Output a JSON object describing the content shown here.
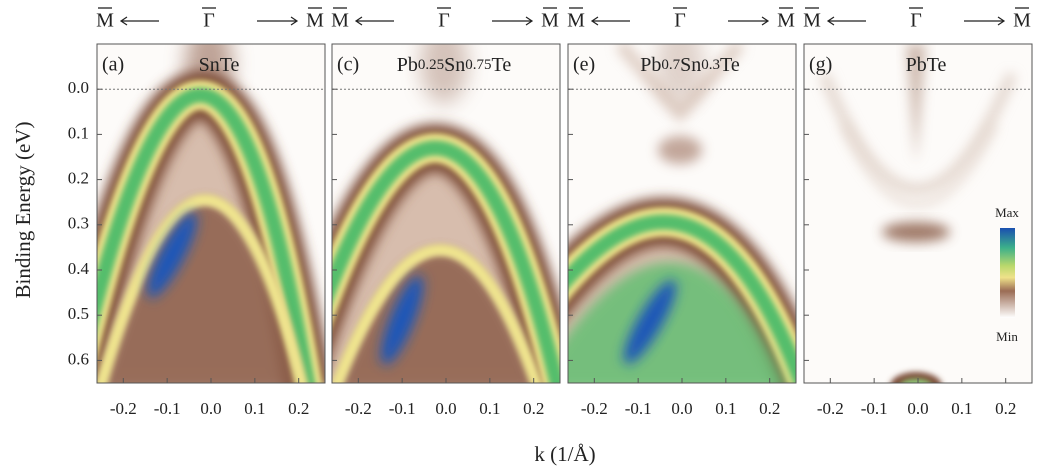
{
  "chart_data": {
    "type": "heatmap",
    "x_label": "k (1/Å)",
    "y_label": "Binding Energy (eV)",
    "xlim": [
      -0.26,
      0.26
    ],
    "ylim": [
      -0.1,
      0.65
    ],
    "y_inverted": true,
    "xticks": [
      -0.2,
      -0.1,
      {
        "value": 0,
        "label": "0.0"
      },
      0.1,
      0.2
    ],
    "yticks": [
      {
        "value": 0,
        "label": "0.0"
      },
      0.1,
      0.2,
      0.3,
      0.4,
      0.5,
      0.6
    ],
    "reference_line": 0,
    "panels": [
      {
        "label": "(a)",
        "material": [
          {
            "text": "SnTe"
          }
        ],
        "k_labels": [
          "M",
          "Γ",
          "M"
        ]
      },
      {
        "label": "(c)",
        "material": [
          {
            "text": "Pb"
          },
          {
            "text": "0.25",
            "small": true
          },
          {
            "text": "Sn"
          },
          {
            "text": "0.75",
            "small": true
          },
          {
            "text": "Te"
          }
        ],
        "k_labels": [
          "M",
          "Γ",
          "M"
        ]
      },
      {
        "label": "(e)",
        "material": [
          {
            "text": "Pb"
          },
          {
            "text": "0.7",
            "small": true
          },
          {
            "text": "Sn"
          },
          {
            "text": "0.3",
            "small": true
          },
          {
            "text": "Te"
          }
        ],
        "k_labels": [
          "M",
          "Γ",
          "M"
        ]
      },
      {
        "label": "(g)",
        "material": [
          {
            "text": "PbTe"
          }
        ],
        "k_labels": [
          "M",
          "Γ",
          "M"
        ]
      }
    ],
    "colorbar": {
      "max_label": "Max",
      "min_label": "Min"
    }
  }
}
